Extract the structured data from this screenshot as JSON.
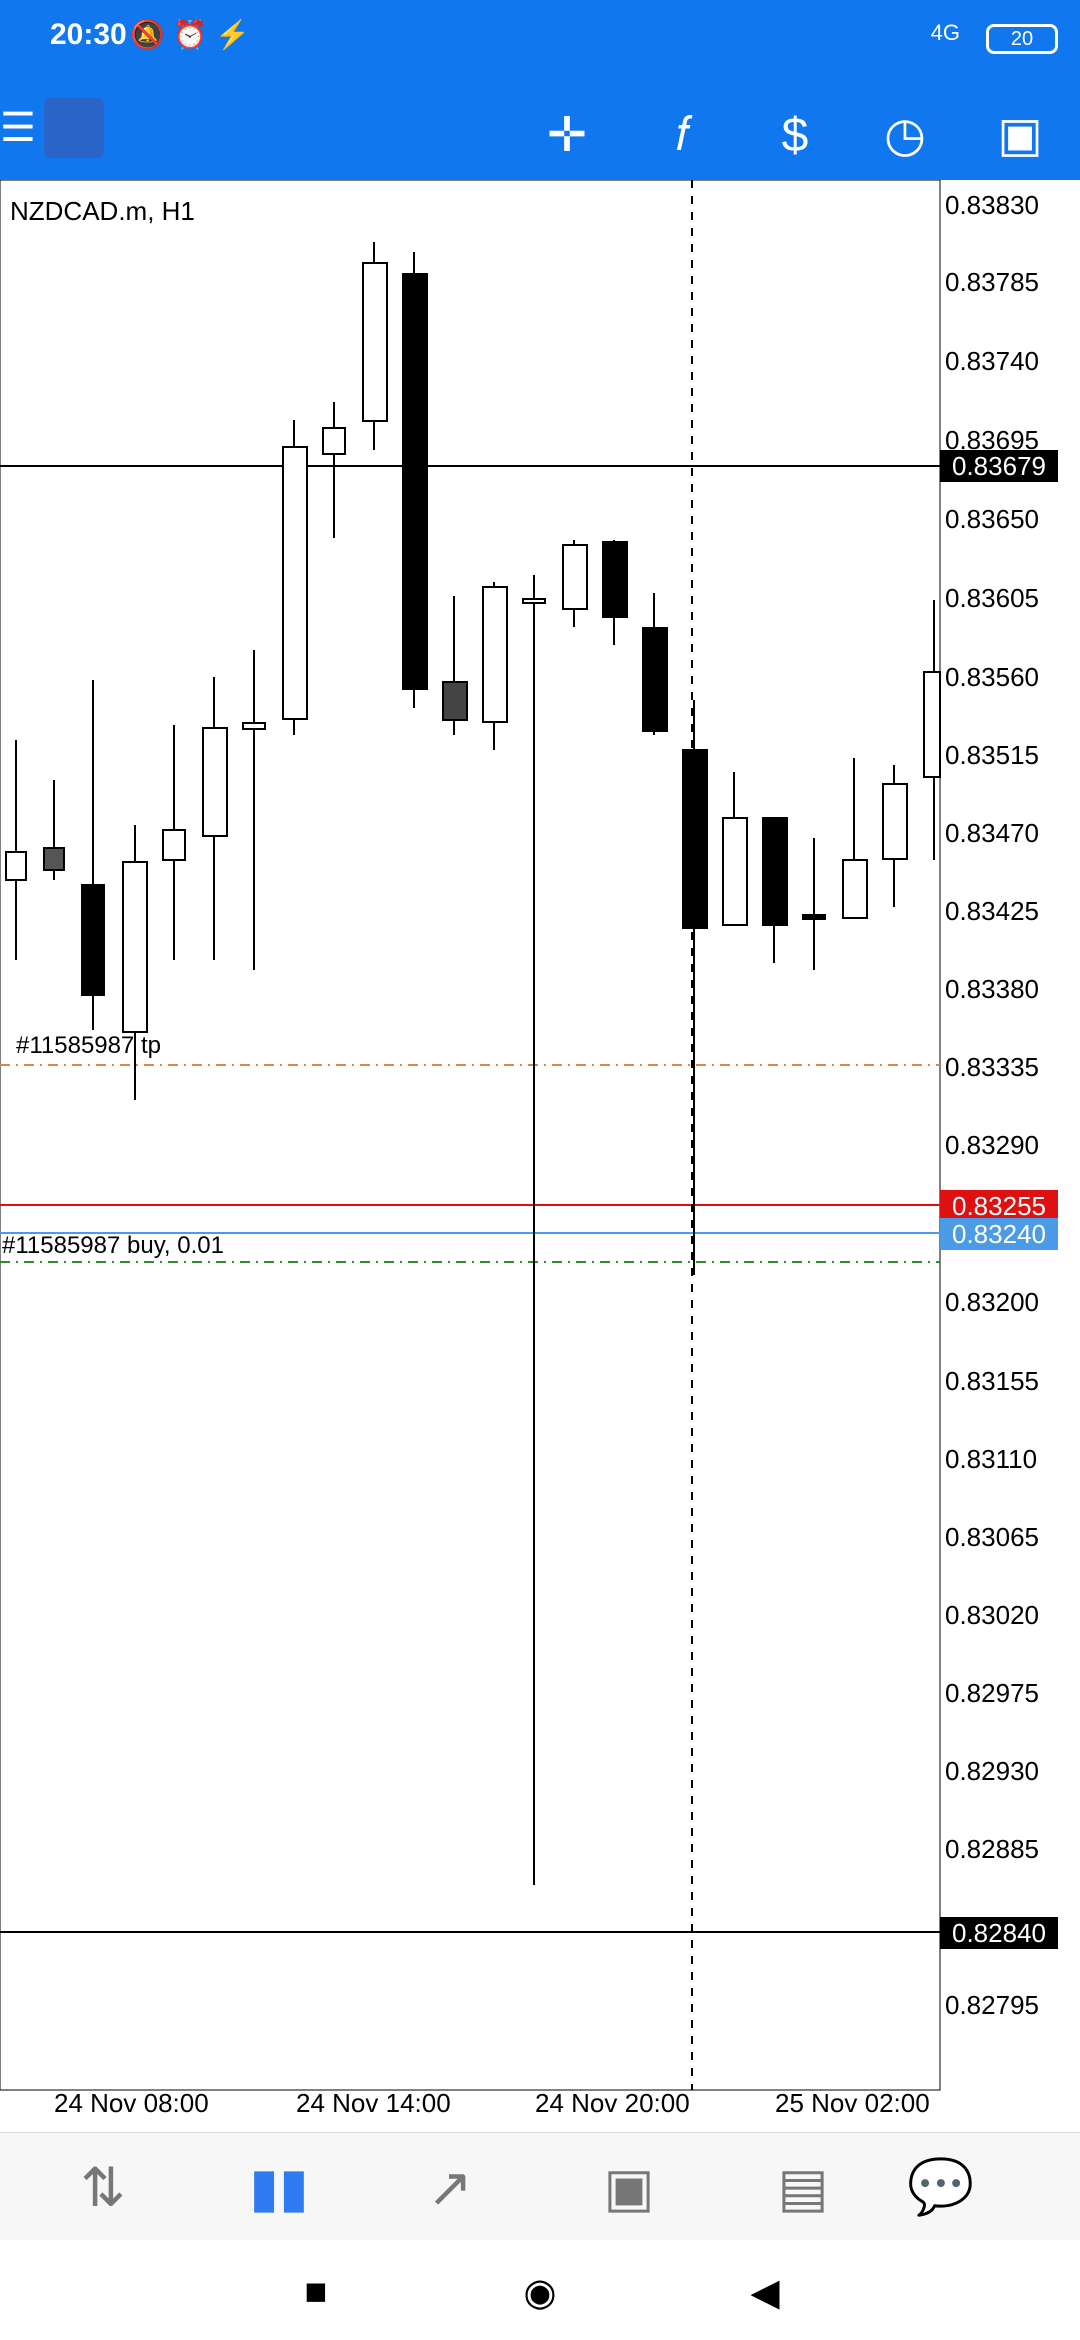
{
  "status_bar": {
    "time": "20:30",
    "network": "4G",
    "battery": "20"
  },
  "toolbar": {
    "app_icon": "metatrader-icon",
    "buttons": [
      "crosshair-icon",
      "function-icon",
      "trade-icon",
      "clock-icon",
      "new-order-icon"
    ]
  },
  "chart": {
    "symbol_label": "NZDCAD.m, H1",
    "price_ticks": [
      "0.83830",
      "0.83785",
      "0.83740",
      "0.83695",
      "0.83650",
      "0.83605",
      "0.83560",
      "0.83515",
      "0.83470",
      "0.83425",
      "0.83380",
      "0.83335",
      "0.83290",
      "0.83200",
      "0.83155",
      "0.83110",
      "0.83065",
      "0.83020",
      "0.82975",
      "0.82930",
      "0.82885",
      "0.82795"
    ],
    "price_labels": {
      "current_line_price": "0.83679",
      "bid_price": "0.83255",
      "ask_price": "0.83240",
      "low_line_price": "0.82840"
    },
    "time_labels": [
      "24 Nov 08:00",
      "24 Nov 14:00",
      "24 Nov 20:00",
      "25 Nov 02:00"
    ],
    "orders": {
      "tp_label": "#11585987 tp",
      "buy_label": "#11585987 buy, 0.01"
    },
    "colors": {
      "bid": "#dd1111",
      "ask": "#4c9be6",
      "tp_line": "#d08a4e",
      "buy_line": "#2f8c2f"
    }
  },
  "bottom_nav": {
    "items": [
      "quotes-icon",
      "chart-icon",
      "trade-icon",
      "history-icon",
      "news-icon",
      "messages-icon"
    ],
    "active": "chart-icon"
  },
  "system_nav": {
    "items": [
      "recent-apps-icon",
      "home-icon",
      "back-icon"
    ]
  }
}
